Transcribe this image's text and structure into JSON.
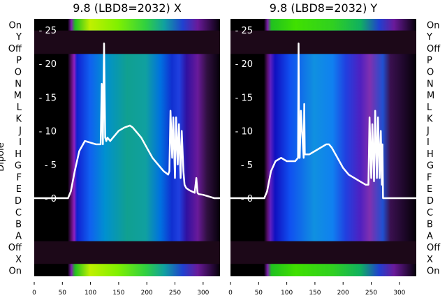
{
  "row_labels": [
    "On",
    "Y",
    "Off",
    "P",
    "O",
    "N",
    "M",
    "L",
    "K",
    "J",
    "I",
    "H",
    "G",
    "F",
    "E",
    "D",
    "C",
    "B",
    "A",
    "Off",
    "X",
    "On"
  ],
  "ylabel": "Dipole",
  "chart_data": [
    {
      "type": "heatmap",
      "title": "9.8 (LBD8=2032) X",
      "xlim": [
        0,
        330
      ],
      "xticks": [
        0,
        50,
        100,
        150,
        200,
        250,
        300
      ],
      "inner_ylim": [
        -0.5,
        27.5
      ],
      "inner_yticks": [
        0,
        5,
        10,
        15,
        20,
        25
      ],
      "line": {
        "x": [
          0,
          60,
          65,
          72,
          80,
          90,
          110,
          118,
          120,
          122,
          124,
          126,
          128,
          130,
          135,
          140,
          150,
          160,
          170,
          175,
          180,
          190,
          200,
          210,
          220,
          230,
          238,
          240,
          242,
          245,
          247,
          250,
          252,
          255,
          257,
          260,
          262,
          265,
          267,
          270,
          275,
          280,
          285,
          288,
          290,
          292,
          300,
          320,
          330
        ],
        "y": [
          0,
          0,
          1,
          4,
          7,
          8.5,
          8,
          8,
          17,
          8,
          23,
          9,
          8.5,
          9,
          8.5,
          9,
          10,
          10.5,
          10.8,
          10.5,
          10,
          9,
          7.5,
          6,
          5,
          4,
          3.5,
          4,
          13,
          6,
          12,
          3,
          12,
          5,
          11,
          3,
          10,
          4,
          2,
          1.5,
          1.2,
          1,
          0.8,
          3,
          0.8,
          0.6,
          0.5,
          0,
          0
        ]
      },
      "colors": {
        "line": "#ffffff",
        "background": "#000000"
      }
    },
    {
      "type": "heatmap",
      "title": "9.8 (LBD8=2032) Y",
      "xlim": [
        0,
        330
      ],
      "xticks": [
        0,
        50,
        100,
        150,
        200,
        250,
        300
      ],
      "inner_ylim": [
        -0.5,
        27.5
      ],
      "inner_yticks": [
        0,
        5,
        10,
        15,
        20,
        25
      ],
      "line": {
        "x": [
          0,
          60,
          65,
          72,
          80,
          90,
          100,
          115,
          120,
          121,
          122,
          123,
          125,
          130,
          131,
          132,
          135,
          140,
          150,
          160,
          170,
          175,
          180,
          190,
          200,
          210,
          220,
          230,
          240,
          245,
          247,
          250,
          252,
          255,
          257,
          260,
          262,
          265,
          267,
          269,
          270,
          271,
          275,
          330
        ],
        "y": [
          0,
          0,
          1,
          4,
          5.5,
          6,
          5.5,
          5.5,
          6,
          23,
          6,
          6,
          13,
          6,
          14,
          6.5,
          6.5,
          6.5,
          7,
          7.5,
          8,
          8,
          7.5,
          6,
          4.5,
          3.5,
          3,
          2.5,
          2,
          2,
          12,
          3,
          11,
          2.5,
          13,
          3,
          12,
          3,
          10,
          2,
          8,
          0,
          0,
          0
        ]
      },
      "colors": {
        "line": "#ffffff",
        "background": "#000000"
      }
    }
  ]
}
